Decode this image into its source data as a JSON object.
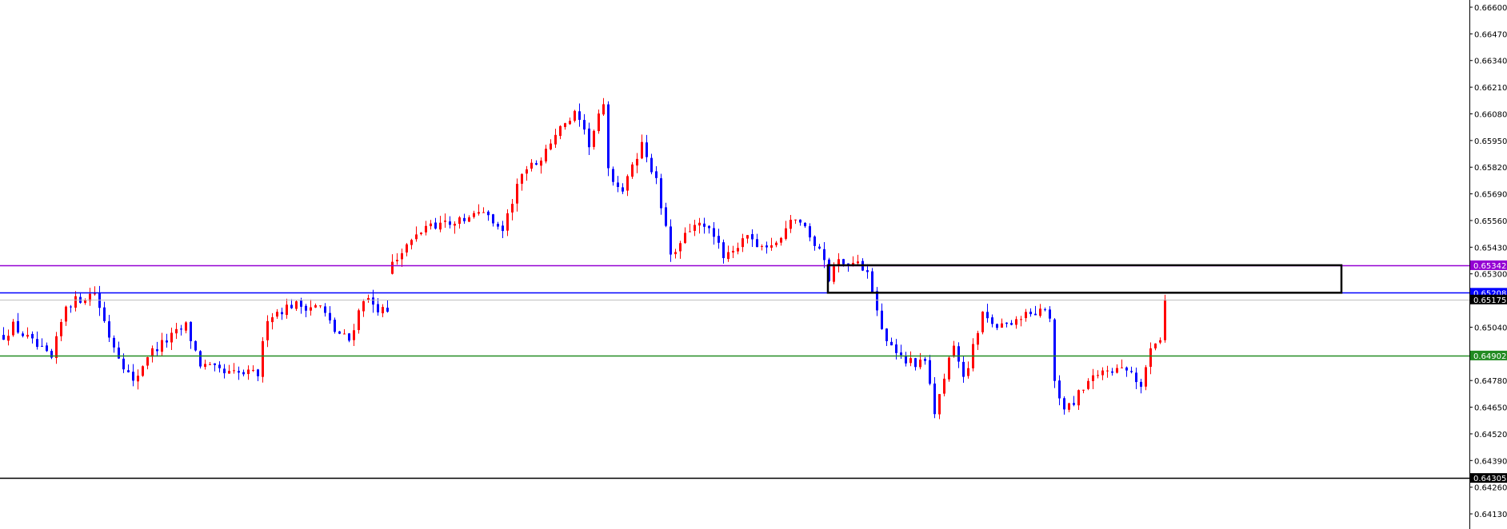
{
  "chart_data": {
    "type": "candlestick",
    "y_axis": {
      "ticks": [
        "0.66600",
        "0.66470",
        "0.66340",
        "0.66210",
        "0.66080",
        "0.65950",
        "0.65820",
        "0.65690",
        "0.65560",
        "0.65430",
        "0.65300",
        "0.65040",
        "0.64780",
        "0.64650",
        "0.64520",
        "0.64390",
        "0.64260",
        "0.64130"
      ],
      "ylim": [
        0.64075,
        0.66635
      ]
    },
    "grid": false,
    "candle_count": 243,
    "colors": {
      "bullish": "#ff0000",
      "bearish": "#0000ff",
      "background": "#ffffff",
      "axis": "#000000"
    },
    "close_path": [
      [
        0,
        0.64999
      ],
      [
        2,
        0.65046
      ],
      [
        10,
        0.64882
      ],
      [
        13,
        0.65149
      ],
      [
        19,
        0.65209
      ],
      [
        22,
        0.64999
      ],
      [
        27,
        0.64765
      ],
      [
        30,
        0.64905
      ],
      [
        38,
        0.65046
      ],
      [
        41,
        0.64859
      ],
      [
        46,
        0.64812
      ],
      [
        53,
        0.64812
      ],
      [
        55,
        0.65092
      ],
      [
        60,
        0.65149
      ],
      [
        66,
        0.65139
      ],
      [
        69,
        0.65022
      ],
      [
        72,
        0.64976
      ],
      [
        75,
        0.65186
      ],
      [
        80,
        0.65102
      ],
      [
        81,
        0.6535
      ],
      [
        88,
        0.65537
      ],
      [
        96,
        0.6556
      ],
      [
        100,
        0.65607
      ],
      [
        104,
        0.65513
      ],
      [
        108,
        0.65794
      ],
      [
        112,
        0.65864
      ],
      [
        115,
        0.65981
      ],
      [
        119,
        0.66074
      ],
      [
        122,
        0.65934
      ],
      [
        125,
        0.66121
      ],
      [
        126,
        0.65794
      ],
      [
        129,
        0.657
      ],
      [
        133,
        0.65934
      ],
      [
        136,
        0.65747
      ],
      [
        138,
        0.65513
      ],
      [
        139,
        0.65373
      ],
      [
        142,
        0.65513
      ],
      [
        146,
        0.65537
      ],
      [
        150,
        0.65396
      ],
      [
        155,
        0.65466
      ],
      [
        160,
        0.6542
      ],
      [
        165,
        0.65583
      ],
      [
        170,
        0.6542
      ],
      [
        172,
        0.65279
      ],
      [
        174,
        0.65373
      ],
      [
        180,
        0.65326
      ],
      [
        182,
        0.65139
      ],
      [
        184,
        0.64952
      ],
      [
        188,
        0.64882
      ],
      [
        192,
        0.64859
      ],
      [
        194,
        0.64625
      ],
      [
        198,
        0.64952
      ],
      [
        200,
        0.64789
      ],
      [
        204,
        0.65092
      ],
      [
        208,
        0.65046
      ],
      [
        212,
        0.65092
      ],
      [
        216,
        0.65116
      ],
      [
        218,
        0.65092
      ],
      [
        219,
        0.64765
      ],
      [
        221,
        0.64625
      ],
      [
        226,
        0.64765
      ],
      [
        230,
        0.64835
      ],
      [
        235,
        0.64812
      ],
      [
        237,
        0.64742
      ],
      [
        239,
        0.64952
      ],
      [
        241,
        0.64999
      ],
      [
        242,
        0.65175
      ]
    ],
    "horizontal_lines": [
      {
        "price": 0.65342,
        "label": "0.65342",
        "color": "#9400d3"
      },
      {
        "price": 0.65208,
        "label": "0.65208",
        "color": "#0000ff"
      },
      {
        "price": 0.65175,
        "label": "0.65175",
        "color": "#c0c0c0",
        "label_bg": "#000000"
      },
      {
        "price": 0.64902,
        "label": "0.64902",
        "color": "#228b22"
      },
      {
        "price": 0.64305,
        "label": "0.64305",
        "color": "#000000"
      }
    ],
    "rectangle": {
      "from_index": 172,
      "to_index": 279,
      "top": 0.65342,
      "bottom": 0.65208,
      "color": "#000000"
    }
  }
}
